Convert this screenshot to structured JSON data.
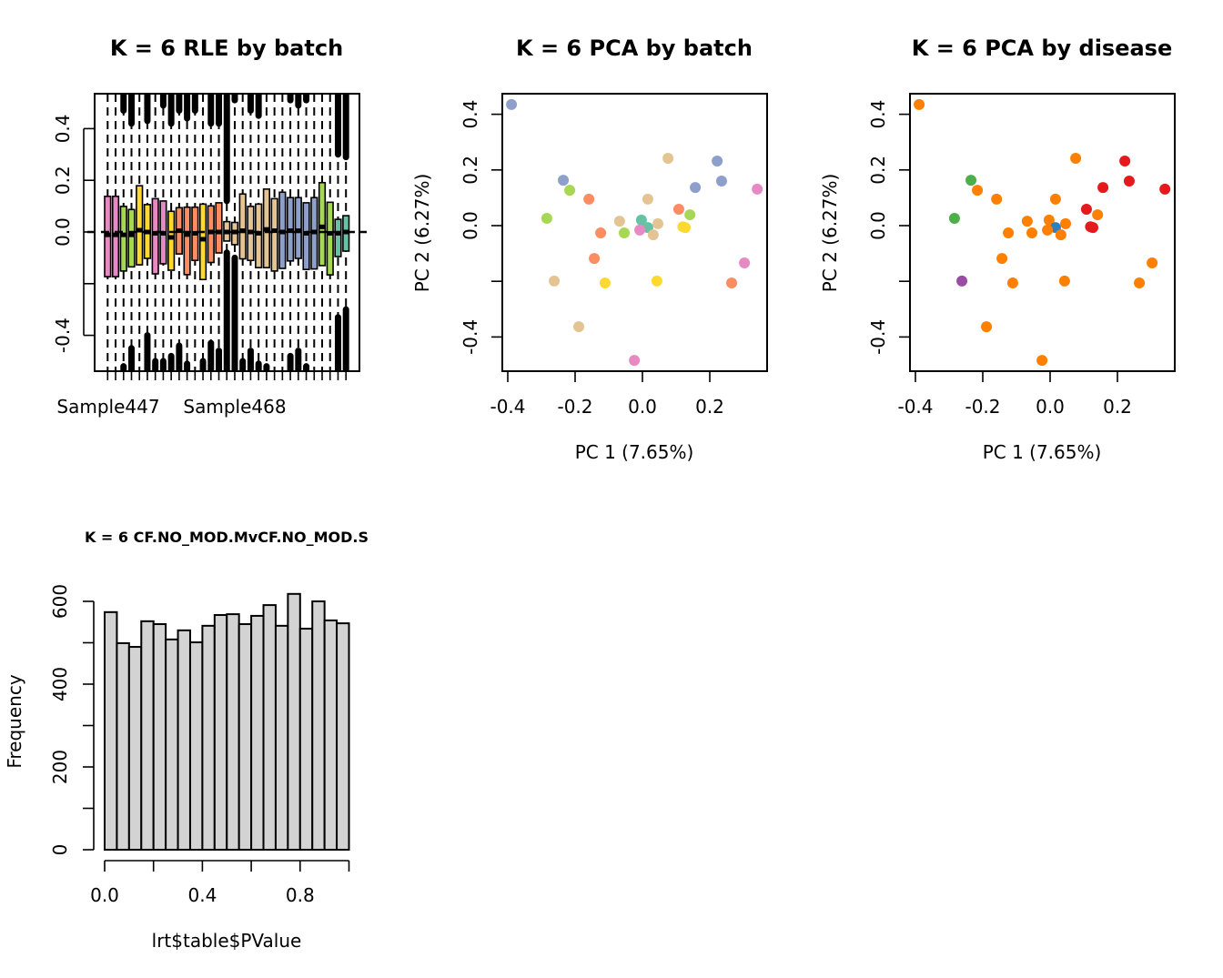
{
  "chart_data": [
    {
      "id": "rle",
      "type": "boxplot",
      "title": "K = 6 RLE by batch",
      "xlabel": "",
      "ylabel": "",
      "ylim": [
        -0.54,
        0.54
      ],
      "yticks": [
        -0.4,
        -0.2,
        0.0,
        0.2,
        0.4
      ],
      "ytick_labels": [
        "-0.4",
        "",
        "0.0",
        "0.2",
        "0.4"
      ],
      "xtick_labels_shown": [
        "Sample447",
        "Sample468"
      ],
      "reference_line": 0.0,
      "batch_colors": {
        "teal": "#66C2A5",
        "orange": "#FC8D62",
        "blue": "#8DA0CB",
        "pink": "#E78AC3",
        "green": "#A6D854",
        "yellow": "#FFD92F",
        "tan": "#E5C494"
      },
      "boxes": [
        {
          "batch": "pink",
          "q1": -0.173,
          "median": -0.011,
          "q3": 0.138,
          "upper_outlier_from": null,
          "lower_outlier_from": null
        },
        {
          "batch": "pink",
          "q1": -0.173,
          "median": -0.011,
          "q3": 0.138,
          "upper_outlier_from": null,
          "lower_outlier_from": null
        },
        {
          "batch": "green",
          "q1": -0.151,
          "median": -0.011,
          "q3": 0.099,
          "upper_outlier_from": 0.47,
          "lower_outlier_from": -0.52
        },
        {
          "batch": "green",
          "q1": -0.135,
          "median": -0.011,
          "q3": 0.087,
          "upper_outlier_from": 0.42,
          "lower_outlier_from": -0.45
        },
        {
          "batch": "yellow",
          "q1": -0.127,
          "median": 0.007,
          "q3": 0.179,
          "upper_outlier_from": null,
          "lower_outlier_from": null
        },
        {
          "batch": "yellow",
          "q1": -0.102,
          "median": 0.0,
          "q3": 0.106,
          "upper_outlier_from": 0.43,
          "lower_outlier_from": -0.4
        },
        {
          "batch": "pink",
          "q1": -0.162,
          "median": -0.005,
          "q3": 0.129,
          "upper_outlier_from": null,
          "lower_outlier_from": -0.5
        },
        {
          "batch": "pink",
          "q1": -0.123,
          "median": -0.005,
          "q3": 0.12,
          "upper_outlier_from": 0.49,
          "lower_outlier_from": -0.5
        },
        {
          "batch": "yellow",
          "q1": -0.148,
          "median": -0.021,
          "q3": 0.08,
          "upper_outlier_from": 0.42,
          "lower_outlier_from": -0.48
        },
        {
          "batch": "orange",
          "q1": -0.085,
          "median": 0.005,
          "q3": 0.094,
          "upper_outlier_from": 0.47,
          "lower_outlier_from": -0.44
        },
        {
          "batch": "orange",
          "q1": -0.165,
          "median": -0.01,
          "q3": 0.096,
          "upper_outlier_from": 0.44,
          "lower_outlier_from": -0.51
        },
        {
          "batch": "orange",
          "q1": -0.11,
          "median": -0.005,
          "q3": 0.096,
          "upper_outlier_from": 0.47,
          "lower_outlier_from": null
        },
        {
          "batch": "yellow",
          "q1": -0.184,
          "median": -0.028,
          "q3": 0.108,
          "upper_outlier_from": null,
          "lower_outlier_from": -0.5
        },
        {
          "batch": "orange",
          "q1": -0.118,
          "median": 0.0,
          "q3": 0.101,
          "upper_outlier_from": 0.42,
          "lower_outlier_from": -0.43
        },
        {
          "batch": "orange",
          "q1": -0.081,
          "median": 0.0,
          "q3": 0.113,
          "upper_outlier_from": 0.42,
          "lower_outlier_from": -0.46
        },
        {
          "batch": "tan",
          "q1": -0.035,
          "median": 0.0,
          "q3": 0.04,
          "upper_outlier_from": 0.12,
          "lower_outlier_from": -0.08
        },
        {
          "batch": "tan",
          "q1": -0.049,
          "median": 0.0,
          "q3": 0.037,
          "upper_outlier_from": 0.51,
          "lower_outlier_from": -0.1
        },
        {
          "batch": "tan",
          "q1": -0.104,
          "median": 0.005,
          "q3": 0.147,
          "upper_outlier_from": null,
          "lower_outlier_from": -0.5
        },
        {
          "batch": "tan",
          "q1": -0.11,
          "median": 0.0,
          "q3": 0.099,
          "upper_outlier_from": 0.47,
          "lower_outlier_from": -0.46
        },
        {
          "batch": "tan",
          "q1": -0.138,
          "median": -0.005,
          "q3": 0.108,
          "upper_outlier_from": 0.45,
          "lower_outlier_from": -0.51
        },
        {
          "batch": "tan",
          "q1": -0.138,
          "median": 0.01,
          "q3": 0.166,
          "upper_outlier_from": null,
          "lower_outlier_from": -0.52
        },
        {
          "batch": "tan",
          "q1": -0.151,
          "median": 0.005,
          "q3": 0.129,
          "upper_outlier_from": null,
          "lower_outlier_from": null
        },
        {
          "batch": "blue",
          "q1": -0.141,
          "median": 0.0,
          "q3": 0.154,
          "upper_outlier_from": null,
          "lower_outlier_from": null
        },
        {
          "batch": "blue",
          "q1": -0.112,
          "median": 0.005,
          "q3": 0.133,
          "upper_outlier_from": 0.51,
          "lower_outlier_from": -0.48
        },
        {
          "batch": "blue",
          "q1": -0.102,
          "median": 0.005,
          "q3": 0.133,
          "upper_outlier_from": 0.49,
          "lower_outlier_from": -0.46
        },
        {
          "batch": "blue",
          "q1": -0.145,
          "median": -0.005,
          "q3": 0.113,
          "upper_outlier_from": 0.51,
          "lower_outlier_from": -0.52
        },
        {
          "batch": "blue",
          "q1": -0.143,
          "median": 0.0,
          "q3": 0.133,
          "upper_outlier_from": null,
          "lower_outlier_from": null
        },
        {
          "batch": "green",
          "q1": -0.13,
          "median": 0.02,
          "q3": 0.191,
          "upper_outlier_from": null,
          "lower_outlier_from": null
        },
        {
          "batch": "green",
          "q1": -0.166,
          "median": -0.005,
          "q3": 0.115,
          "upper_outlier_from": null,
          "lower_outlier_from": null
        },
        {
          "batch": "teal",
          "q1": -0.095,
          "median": -0.005,
          "q3": 0.049,
          "upper_outlier_from": 0.3,
          "lower_outlier_from": -0.33
        },
        {
          "batch": "teal",
          "q1": -0.074,
          "median": 0.0,
          "q3": 0.063,
          "upper_outlier_from": 0.29,
          "lower_outlier_from": -0.3
        }
      ]
    },
    {
      "id": "pca-batch",
      "type": "scatter",
      "title": "K = 6 PCA by batch",
      "xlabel": "PC 1 (7.65%)",
      "ylabel": "PC 2 (6.27%)",
      "xlim": [
        -0.42,
        0.37
      ],
      "ylim": [
        -0.52,
        0.47
      ],
      "xticks": [
        -0.4,
        -0.2,
        0.0,
        0.2
      ],
      "xtick_labels": [
        "-0.4",
        "-0.2",
        "0.0",
        "0.2"
      ],
      "yticks": [
        -0.4,
        -0.2,
        0.0,
        0.2,
        0.4
      ],
      "ytick_labels": [
        "-0.4",
        "",
        "0.0",
        "0.2",
        "0.4"
      ],
      "color_key": "batch"
    },
    {
      "id": "pca-disease",
      "type": "scatter",
      "title": "K = 6 PCA by disease",
      "xlabel": "PC 1 (7.65%)",
      "ylabel": "PC 2 (6.27%)",
      "xlim": [
        -0.42,
        0.37
      ],
      "ylim": [
        -0.52,
        0.47
      ],
      "xticks": [
        -0.4,
        -0.2,
        0.0,
        0.2
      ],
      "xtick_labels": [
        "-0.4",
        "-0.2",
        "0.0",
        "0.2"
      ],
      "yticks": [
        -0.4,
        -0.2,
        0.0,
        0.2,
        0.4
      ],
      "ytick_labels": [
        "-0.4",
        "",
        "0.0",
        "0.2",
        "0.4"
      ],
      "color_key": "disease",
      "disease_colors": {
        "red": "#E41A1C",
        "blue": "#377EB8",
        "green": "#4DAF4A",
        "purple": "#984EA3",
        "orange": "#FF7F00"
      }
    },
    {
      "id": "pvalue-hist",
      "type": "bar",
      "title": "K = 6 CF.NO_MOD.MvCF.NO_MOD.S",
      "xlabel": "lrt$table$PValue",
      "ylabel": "Frequency",
      "xlim": [
        0,
        1
      ],
      "ylim": [
        0,
        620
      ],
      "bin_width": 0.05,
      "xticks": [
        0.0,
        0.2,
        0.4,
        0.6,
        0.8,
        1.0
      ],
      "xtick_labels": [
        "0.0",
        "",
        "0.4",
        "",
        "0.8",
        ""
      ],
      "yticks": [
        0,
        100,
        200,
        300,
        400,
        500,
        600
      ],
      "ytick_labels": [
        "0",
        "",
        "200",
        "",
        "400",
        "",
        "600"
      ],
      "bar_color": "#D3D3D3",
      "values": [
        574,
        499,
        490,
        552,
        545,
        508,
        530,
        501,
        541,
        567,
        569,
        545,
        565,
        591,
        541,
        618,
        534,
        600,
        554,
        547
      ]
    }
  ],
  "pca_points": [
    {
      "pc1": -0.389,
      "pc2": 0.435,
      "batch": "blue",
      "disease": "orange"
    },
    {
      "pc1": 0.076,
      "pc2": 0.242,
      "batch": "tan",
      "disease": "orange"
    },
    {
      "pc1": 0.222,
      "pc2": 0.232,
      "batch": "blue",
      "disease": "red"
    },
    {
      "pc1": -0.235,
      "pc2": 0.163,
      "batch": "blue",
      "disease": "green"
    },
    {
      "pc1": 0.235,
      "pc2": 0.16,
      "batch": "blue",
      "disease": "red"
    },
    {
      "pc1": -0.216,
      "pc2": 0.127,
      "batch": "green",
      "disease": "orange"
    },
    {
      "pc1": 0.341,
      "pc2": 0.131,
      "batch": "pink",
      "disease": "red"
    },
    {
      "pc1": 0.157,
      "pc2": 0.137,
      "batch": "blue",
      "disease": "red"
    },
    {
      "pc1": -0.159,
      "pc2": 0.095,
      "batch": "orange",
      "disease": "orange"
    },
    {
      "pc1": 0.016,
      "pc2": 0.095,
      "batch": "tan",
      "disease": "orange"
    },
    {
      "pc1": 0.108,
      "pc2": 0.059,
      "batch": "orange",
      "disease": "red"
    },
    {
      "pc1": 0.141,
      "pc2": 0.039,
      "batch": "green",
      "disease": "orange"
    },
    {
      "pc1": -0.284,
      "pc2": 0.026,
      "batch": "green",
      "disease": "green"
    },
    {
      "pc1": -0.068,
      "pc2": 0.016,
      "batch": "tan",
      "disease": "orange"
    },
    {
      "pc1": -0.003,
      "pc2": 0.02,
      "batch": "teal",
      "disease": "orange"
    },
    {
      "pc1": 0.046,
      "pc2": 0.007,
      "batch": "tan",
      "disease": "orange"
    },
    {
      "pc1": 0.12,
      "pc2": -0.004,
      "batch": "yellow",
      "disease": "red"
    },
    {
      "pc1": 0.127,
      "pc2": -0.007,
      "batch": "yellow",
      "disease": "red"
    },
    {
      "pc1": 0.016,
      "pc2": -0.007,
      "batch": "teal",
      "disease": "blue"
    },
    {
      "pc1": -0.008,
      "pc2": -0.016,
      "batch": "pink",
      "disease": "orange"
    },
    {
      "pc1": -0.124,
      "pc2": -0.026,
      "batch": "orange",
      "disease": "orange"
    },
    {
      "pc1": -0.054,
      "pc2": -0.026,
      "batch": "green",
      "disease": "orange"
    },
    {
      "pc1": 0.032,
      "pc2": -0.033,
      "batch": "tan",
      "disease": "orange"
    },
    {
      "pc1": -0.143,
      "pc2": -0.118,
      "batch": "orange",
      "disease": "orange"
    },
    {
      "pc1": 0.303,
      "pc2": -0.134,
      "batch": "pink",
      "disease": "orange"
    },
    {
      "pc1": -0.262,
      "pc2": -0.199,
      "batch": "tan",
      "disease": "purple"
    },
    {
      "pc1": -0.111,
      "pc2": -0.206,
      "batch": "yellow",
      "disease": "orange"
    },
    {
      "pc1": 0.043,
      "pc2": -0.199,
      "batch": "yellow",
      "disease": "orange"
    },
    {
      "pc1": 0.265,
      "pc2": -0.206,
      "batch": "orange",
      "disease": "orange"
    },
    {
      "pc1": -0.189,
      "pc2": -0.363,
      "batch": "tan",
      "disease": "orange"
    },
    {
      "pc1": -0.024,
      "pc2": -0.484,
      "batch": "pink",
      "disease": "orange"
    }
  ]
}
